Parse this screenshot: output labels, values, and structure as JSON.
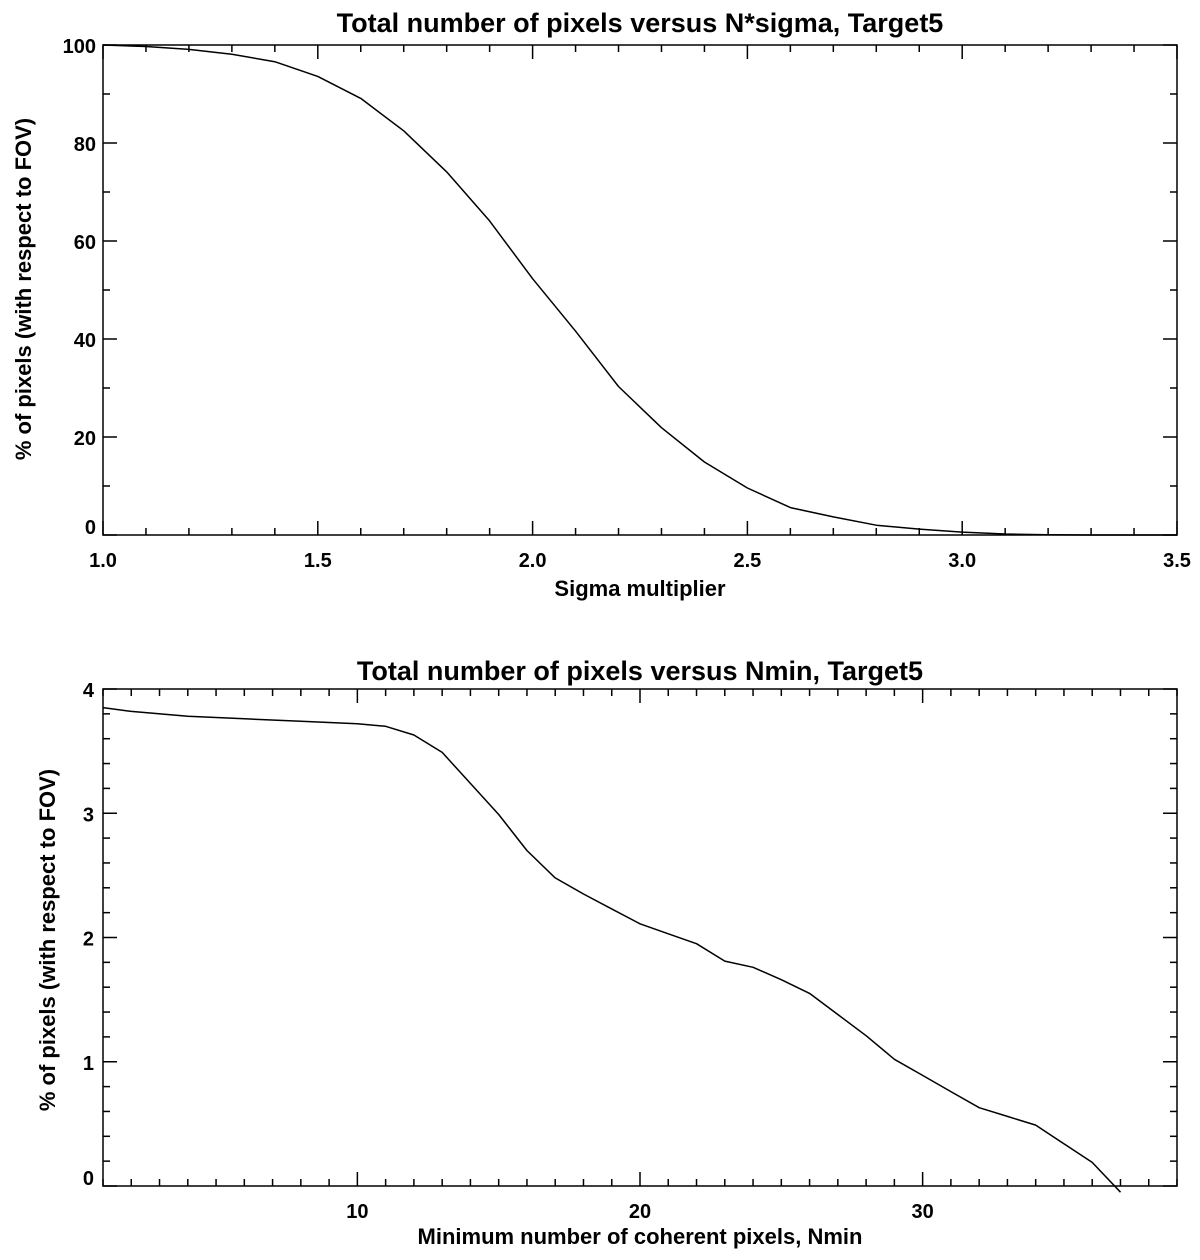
{
  "chart_data": [
    {
      "type": "line",
      "title": "Total number of pixels versus N*sigma, Target5",
      "xlabel": "Sigma multiplier",
      "ylabel": "% of pixels (with respect to FOV)",
      "xlim": [
        1.0,
        3.5
      ],
      "ylim": [
        0,
        100
      ],
      "grid": false,
      "legend": "none",
      "x_ticks": [
        {
          "value": 1.0,
          "label": "1.0"
        },
        {
          "value": 1.5,
          "label": "1.5"
        },
        {
          "value": 2.0,
          "label": "2.0"
        },
        {
          "value": 2.5,
          "label": "2.5"
        },
        {
          "value": 3.0,
          "label": "3.0"
        },
        {
          "value": 3.5,
          "label": "3.5"
        }
      ],
      "y_ticks": [
        {
          "value": 0,
          "label": "0"
        },
        {
          "value": 20,
          "label": "20"
        },
        {
          "value": 40,
          "label": "40"
        },
        {
          "value": 60,
          "label": "60"
        },
        {
          "value": 80,
          "label": "80"
        },
        {
          "value": 100,
          "label": "100"
        }
      ],
      "x_minor_step": 0.1,
      "y_minor_step": 10,
      "series": [
        {
          "x": [
            1.0,
            1.1,
            1.2,
            1.3,
            1.4,
            1.5,
            1.6,
            1.7,
            1.8,
            1.9,
            2.0,
            2.1,
            2.2,
            2.3,
            2.4,
            2.5,
            2.6,
            2.7,
            2.8,
            2.9,
            3.0,
            3.1,
            3.2,
            3.3,
            3.4,
            3.5
          ],
          "y": [
            100,
            99.7,
            99.1,
            98.1,
            96.6,
            93.6,
            89.1,
            82.5,
            74.1,
            64.1,
            52.3,
            41.6,
            30.3,
            21.9,
            14.9,
            9.6,
            5.6,
            3.7,
            2.0,
            1.2,
            0.6,
            0.2,
            0.05,
            0.0,
            0.0,
            0.0
          ]
        }
      ]
    },
    {
      "type": "line",
      "title": "Total number of pixels versus Nmin, Target5",
      "xlabel": "Minimum number of coherent pixels, Nmin",
      "ylabel": "% of pixels (with respect to FOV)",
      "xlim": [
        1,
        39
      ],
      "ylim": [
        0,
        4
      ],
      "grid": false,
      "legend": "none",
      "x_ticks": [
        {
          "value": 10,
          "label": "10"
        },
        {
          "value": 20,
          "label": "20"
        },
        {
          "value": 30,
          "label": "30"
        }
      ],
      "y_ticks": [
        {
          "value": 0,
          "label": "0"
        },
        {
          "value": 1,
          "label": "1"
        },
        {
          "value": 2,
          "label": "2"
        },
        {
          "value": 3,
          "label": "3"
        },
        {
          "value": 4,
          "label": "4"
        }
      ],
      "x_minor_step": 1,
      "y_minor_step": 0.2,
      "series": [
        {
          "x": [
            1,
            2,
            4,
            6,
            8,
            10,
            11,
            12,
            13,
            14,
            15,
            16,
            17,
            18,
            19,
            20,
            21,
            22,
            23,
            24,
            25,
            26,
            27,
            28,
            29,
            30,
            31,
            32,
            33,
            34,
            35,
            36,
            37
          ],
          "y": [
            3.85,
            3.82,
            3.78,
            3.76,
            3.74,
            3.72,
            3.7,
            3.63,
            3.49,
            3.24,
            2.99,
            2.7,
            2.48,
            2.35,
            2.23,
            2.11,
            2.03,
            1.95,
            1.81,
            1.76,
            1.66,
            1.55,
            1.38,
            1.21,
            1.02,
            0.89,
            0.76,
            0.63,
            0.56,
            0.49,
            0.34,
            0.19,
            -0.05
          ]
        }
      ]
    }
  ]
}
